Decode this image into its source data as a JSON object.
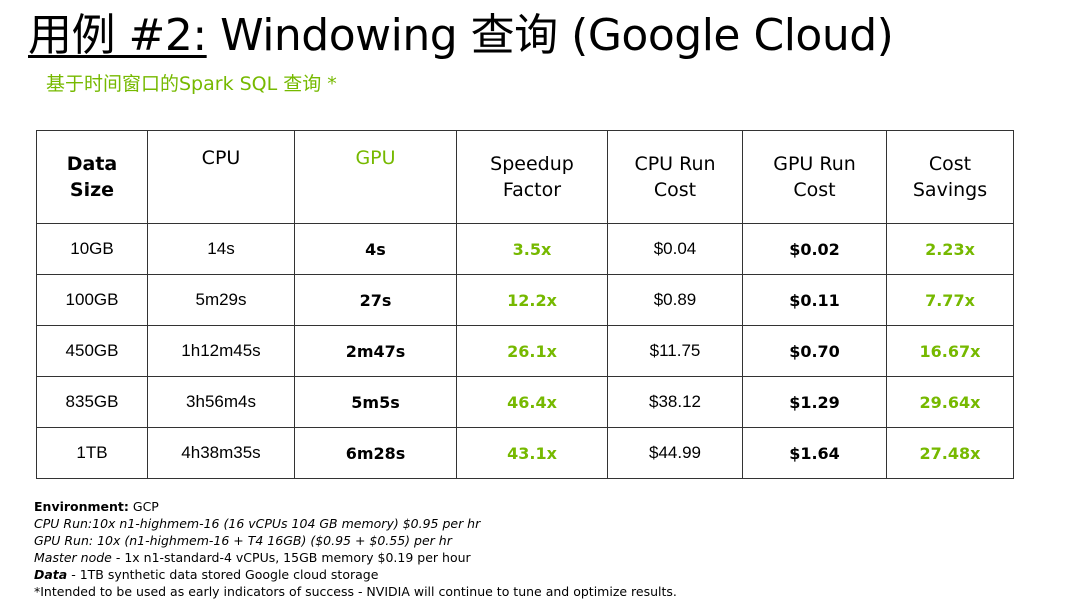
{
  "slide": {
    "title_prefix": "用例 #2:",
    "title_rest": " Windowing 查询 (Google Cloud)",
    "subtitle": "基于时间窗口的Spark SQL 查询 *"
  },
  "table": {
    "headers": [
      {
        "line1": "Data",
        "line2": "Size"
      },
      {
        "line1": "CPU",
        "line2": ""
      },
      {
        "line1": "GPU",
        "line2": ""
      },
      {
        "line1": "Speedup",
        "line2": "Factor"
      },
      {
        "line1": "CPU Run",
        "line2": "Cost"
      },
      {
        "line1": "GPU Run",
        "line2": "Cost"
      },
      {
        "line1": "Cost",
        "line2": "Savings"
      }
    ],
    "rows": [
      {
        "size": "10GB",
        "cpu": "14s",
        "gpu": "4s",
        "speedup": "3.5x",
        "cpu_cost": "$0.04",
        "gpu_cost": "$0.02",
        "savings": "2.23x"
      },
      {
        "size": "100GB",
        "cpu": "5m29s",
        "gpu": "27s",
        "speedup": "12.2x",
        "cpu_cost": "$0.89",
        "gpu_cost": "$0.11",
        "savings": "7.77x"
      },
      {
        "size": "450GB",
        "cpu": "1h12m45s",
        "gpu": "2m47s",
        "speedup": "26.1x",
        "cpu_cost": "$11.75",
        "gpu_cost": "$0.70",
        "savings": "16.67x"
      },
      {
        "size": "835GB",
        "cpu": "3h56m4s",
        "gpu": "5m5s",
        "speedup": "46.4x",
        "cpu_cost": "$38.12",
        "gpu_cost": "$1.29",
        "savings": "29.64x"
      },
      {
        "size": "1TB",
        "cpu": "4h38m35s",
        "gpu": "6m28s",
        "speedup": "43.1x",
        "cpu_cost": "$44.99",
        "gpu_cost": "$1.64",
        "savings": "27.48x"
      }
    ]
  },
  "footnotes": {
    "environment_label": "Environment:",
    "environment_value": " GCP",
    "cpu_run_label": "CPU Run:",
    "cpu_run_value": "10x n1-highmem-16 (16 vCPUs 104 GB memory) $0.95 per hr",
    "gpu_run_label": "GPU Run:",
    "gpu_run_value": " 10x (n1-highmem-16 + T4 16GB) ($0.95 + $0.55) per hr",
    "master_label": "Master node",
    "master_value": " - 1x n1-standard-4 vCPUs, 15GB memory $0.19 per hour",
    "data_label": "Data",
    "data_value": " - 1TB synthetic data stored Google cloud storage",
    "disclaimer": "*Intended to be used as early indicators of success - NVIDIA will continue to tune and optimize results."
  },
  "colors": {
    "accent_green": "#76b900",
    "text": "#000000",
    "border": "#333333"
  }
}
